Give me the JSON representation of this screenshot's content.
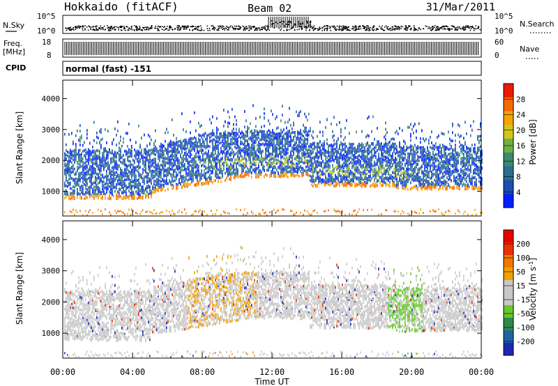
{
  "header": {
    "site": "Hokkaido (fitACF)",
    "beam": "Beam 02",
    "date": "31/Mar/2011"
  },
  "panels": {
    "nsky": {
      "label": "N.Sky",
      "left_ticks": [
        "10^5",
        "10^0"
      ],
      "right_ticks": [
        "10^5",
        "10^0"
      ],
      "right_label": "N.Search"
    },
    "freq": {
      "label_line1": "Freq.",
      "label_line2": "[MHz]",
      "left_ticks": [
        "18",
        "8"
      ],
      "right_ticks": [
        "60",
        "0"
      ],
      "right_label": "Nave"
    },
    "cpid": {
      "label": "CPID",
      "text": "normal (fast) -151"
    }
  },
  "colors": {
    "power": [
      "#0020ff",
      "#1c4fae",
      "#2a6d8e",
      "#3b8a6e",
      "#6fb043",
      "#d2c61c",
      "#f5a400",
      "#f56a00",
      "#ee1a00"
    ],
    "velocity": [
      "#1a28b0",
      "#1e63a3",
      "#2c8a4a",
      "#66c72e",
      "#c8c8c8",
      "#c8c8c8",
      "#f0a000",
      "#f07800",
      "#e83200",
      "#e80000"
    ]
  },
  "chart_data": [
    {
      "type": "heatmap",
      "name": "power",
      "ylabel": "Slant Range [km]",
      "y_ticks": [
        1000,
        2000,
        3000,
        4000
      ],
      "ylim": [
        200,
        4600
      ],
      "x_ticks": [
        "00:00",
        "04:00",
        "08:00",
        "12:00",
        "16:00",
        "20:00",
        "00:00"
      ],
      "xlim_hours": [
        0,
        24
      ],
      "colorbar": {
        "label": "Power [dB]",
        "ticks": [
          "4",
          "8",
          "12",
          "16",
          "20",
          "24",
          "28"
        ]
      }
    },
    {
      "type": "heatmap",
      "name": "velocity",
      "ylabel": "Slant Range [km]",
      "y_ticks": [
        1000,
        2000,
        3000,
        4000
      ],
      "ylim": [
        200,
        4600
      ],
      "x_ticks": [
        "00:00",
        "04:00",
        "08:00",
        "12:00",
        "16:00",
        "20:00",
        "00:00"
      ],
      "xlim_hours": [
        0,
        24
      ],
      "xlabel": "Time UT",
      "colorbar": {
        "label": "Velocity [m s^-1]",
        "ticks": [
          "200",
          "100",
          "50",
          "15",
          "-15",
          "-50",
          "-100",
          "-200"
        ]
      }
    }
  ]
}
